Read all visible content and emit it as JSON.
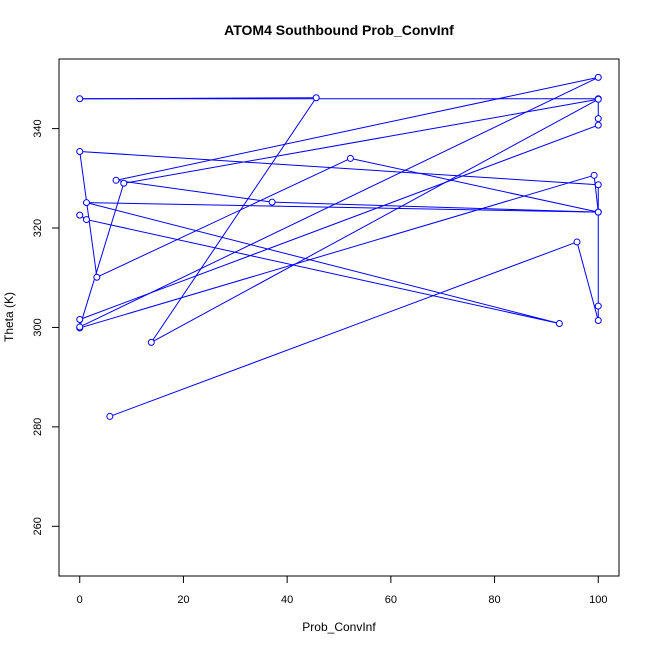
{
  "chart_data": {
    "type": "line",
    "title": "ATOM4 Southbound Prob_ConvInf",
    "xlabel": "Prob_ConvInf",
    "ylabel": "Theta (K)",
    "xlim": [
      -4,
      104
    ],
    "ylim": [
      250,
      354
    ],
    "xticks": [
      0,
      20,
      40,
      60,
      80,
      100
    ],
    "yticks": [
      260,
      280,
      300,
      320,
      340
    ],
    "grid": false,
    "legend": "none",
    "marker": "open-circle",
    "color": "#0000ff",
    "series": [
      {
        "x": [
          5.8,
          95.9,
          100,
          100,
          100,
          0.0,
          3.3,
          52.2,
          100,
          99.2,
          0.0,
          0.0,
          100,
          100,
          100,
          0.0,
          45.6,
          13.8,
          100,
          8.5,
          0.0,
          100,
          7.0,
          37.1,
          100,
          1.3,
          92.5,
          1.3,
          0.0
        ],
        "y": [
          282.1,
          317.2,
          301.4,
          304.3,
          328.7,
          335.4,
          310.1,
          334.0,
          323.2,
          330.6,
          299.9,
          301.6,
          340.7,
          342.0,
          346.0,
          346.0,
          346.2,
          297.0,
          345.9,
          329.0,
          300.1,
          350.3,
          329.6,
          325.2,
          323.2,
          325.1,
          300.8,
          321.7,
          322.6
        ]
      }
    ]
  }
}
